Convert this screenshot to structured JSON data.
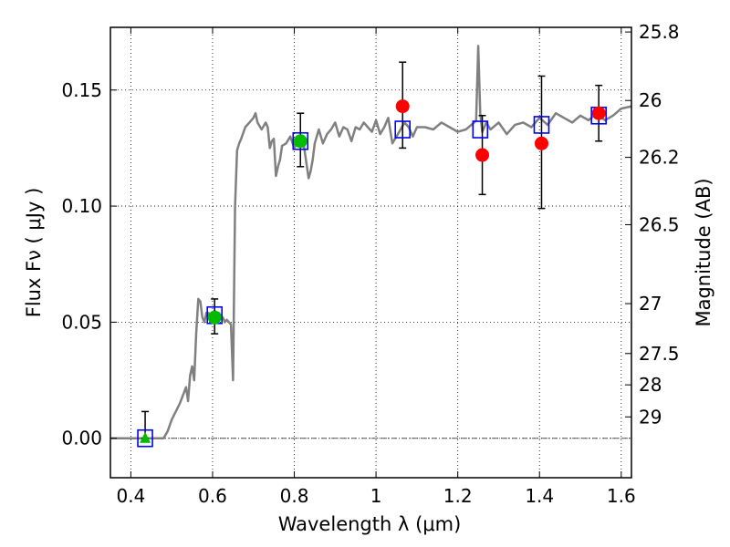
{
  "chart_data": {
    "type": "scatter",
    "xlabel": "Wavelength  λ (μm)",
    "ylabel": "Flux  Fν  ( μJy )",
    "ylabel_right": "Magnitude (AB)",
    "xlim": [
      0.35,
      1.625
    ],
    "ylim": [
      -0.017,
      0.177
    ],
    "x_ticks": [
      0.4,
      0.6,
      0.8,
      1.0,
      1.2,
      1.4,
      1.6
    ],
    "x_tick_labels": [
      "0.4",
      "0.6",
      "0.8",
      "1",
      "1.2",
      "1.4",
      "1.6"
    ],
    "y_ticks": [
      0.0,
      0.05,
      0.1,
      0.15
    ],
    "y_tick_labels": [
      "0.00",
      "0.05",
      "0.10",
      "0.15"
    ],
    "right_ticks": [
      {
        "label": "25.8",
        "flux": 0.175
      },
      {
        "label": "26",
        "flux": 0.1455
      },
      {
        "label": "26.2",
        "flux": 0.121
      },
      {
        "label": "26.5",
        "flux": 0.092
      },
      {
        "label": "27",
        "flux": 0.058
      },
      {
        "label": "27.5",
        "flux": 0.0365
      },
      {
        "label": "28",
        "flux": 0.023
      },
      {
        "label": "29",
        "flux": 0.0092
      }
    ],
    "grid": true,
    "zero_line": 0.0,
    "colors": {
      "template": "#808080",
      "square": "#0000ff",
      "circle": "#ff0000",
      "green": "#00bb00",
      "error": "#000000"
    },
    "template_sed": {
      "x": [
        0.35,
        0.48,
        0.49,
        0.5,
        0.52,
        0.535,
        0.54,
        0.545,
        0.55,
        0.555,
        0.56,
        0.565,
        0.57,
        0.575,
        0.58,
        0.585,
        0.59,
        0.595,
        0.6,
        0.605,
        0.61,
        0.615,
        0.62,
        0.625,
        0.63,
        0.635,
        0.64,
        0.645,
        0.65,
        0.655,
        0.66,
        0.665,
        0.67,
        0.68,
        0.69,
        0.7,
        0.705,
        0.71,
        0.72,
        0.73,
        0.735,
        0.74,
        0.745,
        0.75,
        0.755,
        0.76,
        0.765,
        0.77,
        0.78,
        0.79,
        0.8,
        0.81,
        0.82,
        0.83,
        0.835,
        0.84,
        0.845,
        0.85,
        0.86,
        0.87,
        0.88,
        0.89,
        0.9,
        0.91,
        0.92,
        0.93,
        0.94,
        0.95,
        0.96,
        0.97,
        0.98,
        0.99,
        1.0,
        1.01,
        1.02,
        1.03,
        1.04,
        1.05,
        1.06,
        1.07,
        1.08,
        1.09,
        1.1,
        1.12,
        1.14,
        1.16,
        1.18,
        1.2,
        1.22,
        1.24,
        1.245,
        1.25,
        1.255,
        1.26,
        1.27,
        1.28,
        1.3,
        1.32,
        1.34,
        1.36,
        1.38,
        1.4,
        1.42,
        1.44,
        1.46,
        1.48,
        1.5,
        1.52,
        1.54,
        1.56,
        1.58,
        1.6,
        1.625
      ],
      "y": [
        0.0,
        0.0,
        0.003,
        0.008,
        0.015,
        0.022,
        0.016,
        0.027,
        0.031,
        0.025,
        0.045,
        0.06,
        0.059,
        0.052,
        0.05,
        0.054,
        0.054,
        0.05,
        0.053,
        0.055,
        0.051,
        0.054,
        0.053,
        0.052,
        0.05,
        0.051,
        0.05,
        0.049,
        0.025,
        0.1,
        0.124,
        0.127,
        0.129,
        0.134,
        0.136,
        0.138,
        0.14,
        0.136,
        0.133,
        0.136,
        0.134,
        0.125,
        0.128,
        0.129,
        0.113,
        0.117,
        0.12,
        0.126,
        0.127,
        0.13,
        0.125,
        0.128,
        0.13,
        0.118,
        0.112,
        0.115,
        0.12,
        0.127,
        0.133,
        0.127,
        0.131,
        0.133,
        0.136,
        0.13,
        0.134,
        0.133,
        0.128,
        0.134,
        0.133,
        0.136,
        0.134,
        0.132,
        0.137,
        0.131,
        0.134,
        0.138,
        0.127,
        0.13,
        0.133,
        0.136,
        0.134,
        0.13,
        0.134,
        0.134,
        0.133,
        0.136,
        0.134,
        0.132,
        0.133,
        0.136,
        0.137,
        0.169,
        0.14,
        0.132,
        0.136,
        0.133,
        0.136,
        0.131,
        0.135,
        0.136,
        0.134,
        0.138,
        0.135,
        0.14,
        0.138,
        0.136,
        0.139,
        0.137,
        0.14,
        0.137,
        0.139,
        0.142,
        0.143
      ]
    },
    "series": [
      {
        "marker": "square",
        "points": [
          {
            "x": 0.435,
            "y": 0.0
          },
          {
            "x": 0.605,
            "y": 0.053
          },
          {
            "x": 0.815,
            "y": 0.128
          },
          {
            "x": 1.065,
            "y": 0.133
          },
          {
            "x": 1.255,
            "y": 0.133
          },
          {
            "x": 1.405,
            "y": 0.135
          },
          {
            "x": 1.545,
            "y": 0.139
          }
        ]
      },
      {
        "marker": "circle",
        "points": [
          {
            "x": 1.065,
            "y": 0.143
          },
          {
            "x": 1.26,
            "y": 0.122
          },
          {
            "x": 1.405,
            "y": 0.127
          },
          {
            "x": 1.545,
            "y": 0.14
          }
        ]
      },
      {
        "marker": "circle-green",
        "points": [
          {
            "x": 0.605,
            "y": 0.052
          },
          {
            "x": 0.815,
            "y": 0.128
          }
        ]
      },
      {
        "marker": "triangle-green",
        "points": [
          {
            "x": 0.435,
            "y": 0.0
          }
        ]
      }
    ],
    "error_bars": [
      {
        "x": 0.435,
        "ylow": 0.0,
        "yhigh": 0.0115
      },
      {
        "x": 0.605,
        "ylow": 0.045,
        "yhigh": 0.06
      },
      {
        "x": 0.815,
        "ylow": 0.117,
        "yhigh": 0.14
      },
      {
        "x": 1.065,
        "ylow": 0.125,
        "yhigh": 0.162
      },
      {
        "x": 1.26,
        "ylow": 0.105,
        "yhigh": 0.139
      },
      {
        "x": 1.405,
        "ylow": 0.099,
        "yhigh": 0.156
      },
      {
        "x": 1.545,
        "ylow": 0.128,
        "yhigh": 0.152
      }
    ]
  }
}
